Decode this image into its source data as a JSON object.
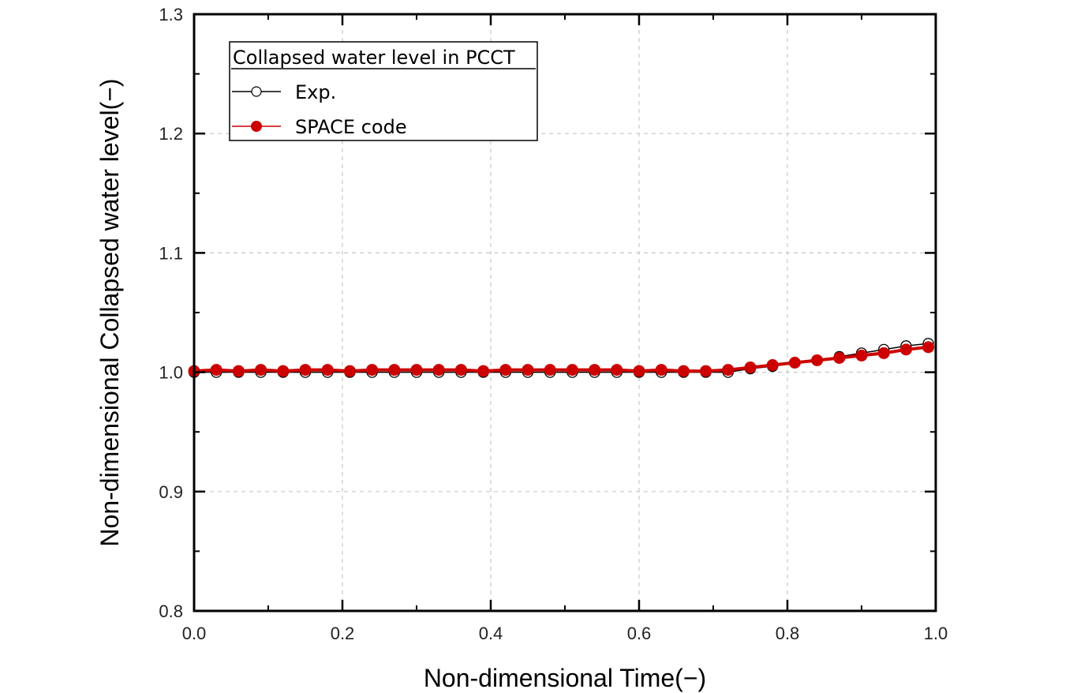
{
  "chart_data": {
    "type": "line",
    "title": "",
    "xlabel": "Non-dimensional Time(−)",
    "ylabel": "Non-dimensional Collapsed water level(−)",
    "xlim": [
      0.0,
      1.0
    ],
    "ylim": [
      0.8,
      1.3
    ],
    "xticks": [
      "0.0",
      "0.2",
      "0.4",
      "0.6",
      "0.8",
      "1.0"
    ],
    "yticks": [
      "0.8",
      "0.9",
      "1.0",
      "1.1",
      "1.2",
      "1.3"
    ],
    "grid": true,
    "legend": {
      "title": "Collapsed water level in PCCT",
      "placement": "top-left",
      "entries": [
        "Exp.",
        "SPACE code"
      ]
    },
    "x": [
      0.0,
      0.03,
      0.06,
      0.09,
      0.12,
      0.15,
      0.18,
      0.21,
      0.24,
      0.27,
      0.3,
      0.33,
      0.36,
      0.39,
      0.42,
      0.45,
      0.48,
      0.51,
      0.54,
      0.57,
      0.6,
      0.63,
      0.66,
      0.69,
      0.72,
      0.75,
      0.78,
      0.81,
      0.84,
      0.87,
      0.9,
      0.93,
      0.96,
      0.99
    ],
    "series": [
      {
        "name": "Exp.",
        "color": "#000000",
        "marker": "open-circle",
        "values": [
          1.0,
          1.0,
          1.0,
          1.0,
          1.0,
          1.0,
          1.0,
          1.0,
          1.0,
          1.0,
          1.0,
          1.0,
          1.0,
          1.0,
          1.0,
          1.0,
          1.0,
          1.0,
          1.0,
          1.0,
          1.0,
          1.0,
          1.0,
          1.0,
          1.0,
          1.003,
          1.005,
          1.008,
          1.01,
          1.013,
          1.016,
          1.019,
          1.022,
          1.024
        ]
      },
      {
        "name": "SPACE code",
        "color": "#cc0000",
        "marker": "filled-circle",
        "values": [
          1.001,
          1.002,
          1.001,
          1.002,
          1.001,
          1.002,
          1.002,
          1.001,
          1.002,
          1.002,
          1.002,
          1.002,
          1.002,
          1.001,
          1.002,
          1.002,
          1.002,
          1.002,
          1.002,
          1.002,
          1.001,
          1.002,
          1.001,
          1.001,
          1.002,
          1.004,
          1.006,
          1.008,
          1.01,
          1.012,
          1.014,
          1.016,
          1.019,
          1.021
        ]
      }
    ]
  }
}
